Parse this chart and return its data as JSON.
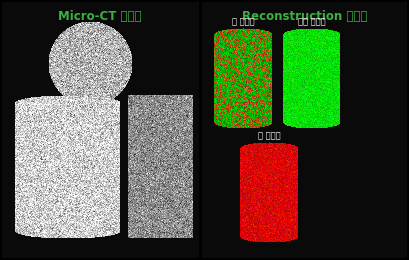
{
  "title_left": "Micro-CT 이미지",
  "title_right": "Reconstruction 이미지",
  "label_ball": "볼 이미지",
  "label_base": "기지 이미지",
  "label_cell": "셀 이미지",
  "title_color": "#3cb043",
  "label_color": "#ffffff",
  "bg_color": "#000000",
  "title_fontsize": 8.5,
  "label_fontsize": 6.0,
  "fig_w": 4.09,
  "fig_h": 2.6,
  "dpi": 100
}
